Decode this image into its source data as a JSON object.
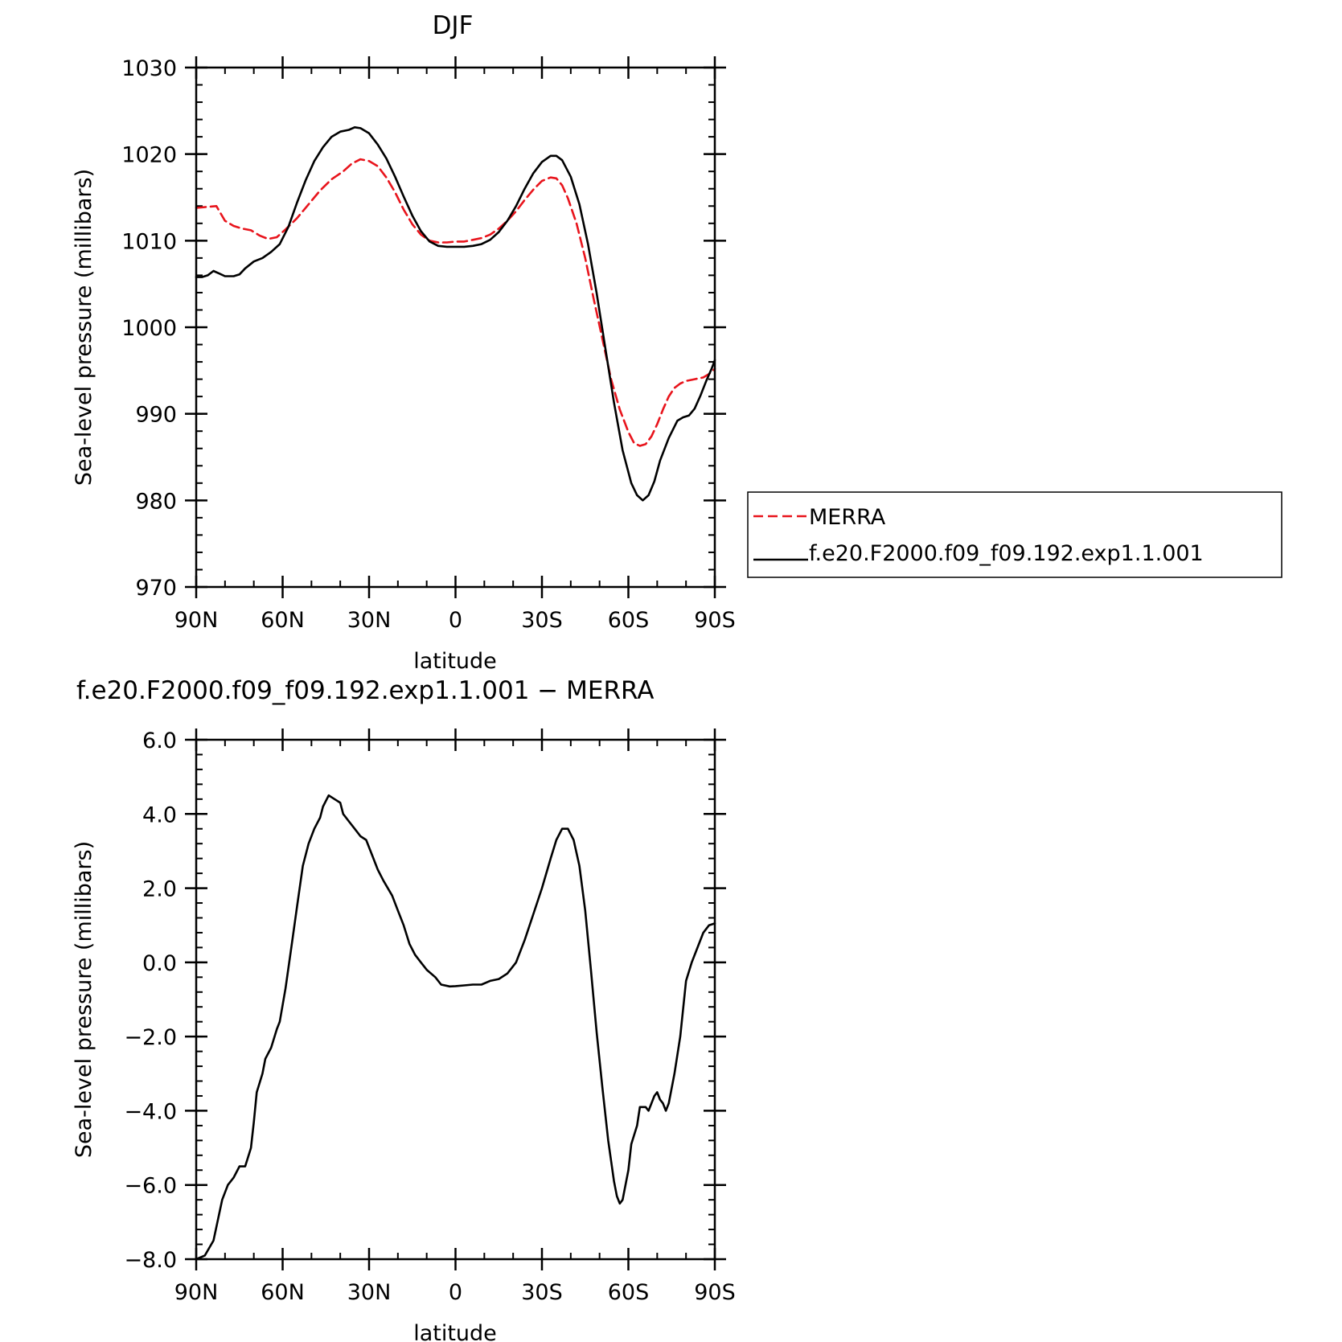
{
  "chart_data": [
    {
      "type": "line",
      "title": "DJF",
      "xlabel": "latitude",
      "ylabel": "Sea-level pressure (millibars)",
      "xlim": [
        90,
        -90
      ],
      "ylim": [
        970,
        1030
      ],
      "xticks": [
        {
          "value": 90,
          "label": "90N"
        },
        {
          "value": 60,
          "label": "60N"
        },
        {
          "value": 30,
          "label": "30N"
        },
        {
          "value": 0,
          "label": "0"
        },
        {
          "value": -30,
          "label": "30S"
        },
        {
          "value": -60,
          "label": "60S"
        },
        {
          "value": -90,
          "label": "90S"
        }
      ],
      "yticks": [
        {
          "value": 970,
          "label": "970"
        },
        {
          "value": 980,
          "label": "980"
        },
        {
          "value": 990,
          "label": "990"
        },
        {
          "value": 1000,
          "label": "1000"
        },
        {
          "value": 1010,
          "label": "1010"
        },
        {
          "value": 1020,
          "label": "1020"
        },
        {
          "value": 1030,
          "label": "1030"
        }
      ],
      "legend": {
        "placement": "right"
      },
      "series": [
        {
          "name": "MERRA",
          "color": "#e8141c",
          "style": "dashed",
          "points": [
            [
              90,
              1013.8
            ],
            [
              86,
              1013.9
            ],
            [
              83,
              1014.0
            ],
            [
              80,
              1012.3
            ],
            [
              77,
              1011.7
            ],
            [
              74,
              1011.4
            ],
            [
              71,
              1011.2
            ],
            [
              68,
              1010.6
            ],
            [
              65,
              1010.2
            ],
            [
              62,
              1010.4
            ],
            [
              59,
              1011.3
            ],
            [
              55,
              1012.6
            ],
            [
              51,
              1014.2
            ],
            [
              47,
              1015.8
            ],
            [
              43,
              1017.1
            ],
            [
              39,
              1018.0
            ],
            [
              36,
              1018.9
            ],
            [
              33,
              1019.4
            ],
            [
              30,
              1019.2
            ],
            [
              27,
              1018.6
            ],
            [
              24,
              1017.3
            ],
            [
              21,
              1015.6
            ],
            [
              18,
              1013.6
            ],
            [
              15,
              1011.9
            ],
            [
              12,
              1010.7
            ],
            [
              9,
              1010.0
            ],
            [
              6,
              1009.8
            ],
            [
              3,
              1009.8
            ],
            [
              0,
              1009.9
            ],
            [
              -3,
              1009.9
            ],
            [
              -6,
              1010.1
            ],
            [
              -9,
              1010.3
            ],
            [
              -12,
              1010.7
            ],
            [
              -15,
              1011.4
            ],
            [
              -18,
              1012.3
            ],
            [
              -21,
              1013.4
            ],
            [
              -24,
              1014.7
            ],
            [
              -27,
              1015.9
            ],
            [
              -30,
              1016.9
            ],
            [
              -33,
              1017.3
            ],
            [
              -35,
              1017.2
            ],
            [
              -37,
              1016.4
            ],
            [
              -39,
              1014.9
            ],
            [
              -42,
              1012.0
            ],
            [
              -45,
              1008.0
            ],
            [
              -48,
              1003.2
            ],
            [
              -51,
              998.6
            ],
            [
              -54,
              994.0
            ],
            [
              -57,
              990.5
            ],
            [
              -60,
              987.9
            ],
            [
              -62,
              986.6
            ],
            [
              -64,
              986.3
            ],
            [
              -66,
              986.5
            ],
            [
              -68,
              987.4
            ],
            [
              -70,
              988.8
            ],
            [
              -72,
              990.5
            ],
            [
              -74,
              992.0
            ],
            [
              -76,
              993.0
            ],
            [
              -78,
              993.5
            ],
            [
              -80,
              993.8
            ],
            [
              -83,
              994.0
            ],
            [
              -86,
              994.2
            ],
            [
              -88,
              994.6
            ],
            [
              -90,
              995.2
            ]
          ]
        },
        {
          "name": "f.e20.F2000.f09_f09.192.exp1.1.001",
          "color": "#000000",
          "style": "solid",
          "points": [
            [
              90,
              1005.8
            ],
            [
              88,
              1005.8
            ],
            [
              86,
              1006.0
            ],
            [
              84,
              1006.5
            ],
            [
              82,
              1006.2
            ],
            [
              80,
              1005.9
            ],
            [
              77,
              1005.9
            ],
            [
              75,
              1006.1
            ],
            [
              73,
              1006.8
            ],
            [
              70,
              1007.6
            ],
            [
              67,
              1008.0
            ],
            [
              64,
              1008.7
            ],
            [
              61,
              1009.6
            ],
            [
              58,
              1011.6
            ],
            [
              55,
              1014.4
            ],
            [
              52,
              1017.0
            ],
            [
              49,
              1019.2
            ],
            [
              46,
              1020.8
            ],
            [
              43,
              1022.0
            ],
            [
              40,
              1022.6
            ],
            [
              37,
              1022.8
            ],
            [
              35,
              1023.1
            ],
            [
              33,
              1023.0
            ],
            [
              30,
              1022.4
            ],
            [
              27,
              1021.1
            ],
            [
              24,
              1019.5
            ],
            [
              21,
              1017.4
            ],
            [
              18,
              1015.1
            ],
            [
              15,
              1012.9
            ],
            [
              12,
              1011.1
            ],
            [
              9,
              1009.9
            ],
            [
              6,
              1009.4
            ],
            [
              3,
              1009.3
            ],
            [
              0,
              1009.3
            ],
            [
              -3,
              1009.3
            ],
            [
              -6,
              1009.4
            ],
            [
              -9,
              1009.6
            ],
            [
              -12,
              1010.1
            ],
            [
              -15,
              1011.0
            ],
            [
              -18,
              1012.3
            ],
            [
              -21,
              1014.0
            ],
            [
              -24,
              1016.0
            ],
            [
              -27,
              1017.8
            ],
            [
              -30,
              1019.1
            ],
            [
              -33,
              1019.8
            ],
            [
              -35,
              1019.8
            ],
            [
              -37,
              1019.3
            ],
            [
              -40,
              1017.4
            ],
            [
              -43,
              1014.2
            ],
            [
              -46,
              1009.6
            ],
            [
              -49,
              1003.9
            ],
            [
              -52,
              997.6
            ],
            [
              -55,
              991.3
            ],
            [
              -58,
              985.8
            ],
            [
              -61,
              982.0
            ],
            [
              -63,
              980.6
            ],
            [
              -65,
              980.0
            ],
            [
              -67,
              980.6
            ],
            [
              -69,
              982.2
            ],
            [
              -71,
              984.6
            ],
            [
              -74,
              987.2
            ],
            [
              -77,
              989.2
            ],
            [
              -79,
              989.6
            ],
            [
              -81,
              989.8
            ],
            [
              -83,
              990.6
            ],
            [
              -85,
              992.1
            ],
            [
              -87,
              993.8
            ],
            [
              -89,
              995.3
            ],
            [
              -90,
              996.2
            ]
          ]
        }
      ]
    },
    {
      "type": "line",
      "title": "f.e20.F2000.f09_f09.192.exp1.1.001 − MERRA",
      "xlabel": "latitude",
      "ylabel": "Sea-level pressure (millibars)",
      "xlim": [
        90,
        -90
      ],
      "ylim": [
        -8,
        6
      ],
      "xticks": [
        {
          "value": 90,
          "label": "90N"
        },
        {
          "value": 60,
          "label": "60N"
        },
        {
          "value": 30,
          "label": "30N"
        },
        {
          "value": 0,
          "label": "0"
        },
        {
          "value": -30,
          "label": "30S"
        },
        {
          "value": -60,
          "label": "60S"
        },
        {
          "value": -90,
          "label": "90S"
        }
      ],
      "yticks": [
        {
          "value": -8,
          "label": "−8.0"
        },
        {
          "value": -6,
          "label": "−6.0"
        },
        {
          "value": -4,
          "label": "−4.0"
        },
        {
          "value": -2,
          "label": "−2.0"
        },
        {
          "value": 0,
          "label": "0.0"
        },
        {
          "value": 2,
          "label": "2.0"
        },
        {
          "value": 4,
          "label": "4.0"
        },
        {
          "value": 6,
          "label": "6.0"
        }
      ],
      "series": [
        {
          "color": "#000000",
          "style": "solid",
          "points": [
            [
              90,
              -8.0
            ],
            [
              87,
              -7.9
            ],
            [
              84,
              -7.5
            ],
            [
              81,
              -6.4
            ],
            [
              79,
              -6.0
            ],
            [
              77,
              -5.8
            ],
            [
              75,
              -5.5
            ],
            [
              73,
              -5.5
            ],
            [
              71,
              -5.0
            ],
            [
              70,
              -4.3
            ],
            [
              69,
              -3.5
            ],
            [
              67,
              -3.0
            ],
            [
              66,
              -2.6
            ],
            [
              64,
              -2.3
            ],
            [
              62,
              -1.8
            ],
            [
              61,
              -1.6
            ],
            [
              59,
              -0.7
            ],
            [
              57,
              0.4
            ],
            [
              55,
              1.5
            ],
            [
              53,
              2.6
            ],
            [
              51,
              3.2
            ],
            [
              49,
              3.6
            ],
            [
              47,
              3.9
            ],
            [
              46,
              4.2
            ],
            [
              44,
              4.5
            ],
            [
              42,
              4.4
            ],
            [
              40,
              4.3
            ],
            [
              39,
              4.0
            ],
            [
              37,
              3.8
            ],
            [
              35,
              3.6
            ],
            [
              33,
              3.4
            ],
            [
              31,
              3.3
            ],
            [
              29,
              2.9
            ],
            [
              27,
              2.5
            ],
            [
              25,
              2.2
            ],
            [
              22,
              1.8
            ],
            [
              20,
              1.4
            ],
            [
              18,
              1.0
            ],
            [
              16,
              0.5
            ],
            [
              14,
              0.2
            ],
            [
              12,
              0.0
            ],
            [
              10,
              -0.2
            ],
            [
              7,
              -0.4
            ],
            [
              5,
              -0.6
            ],
            [
              2,
              -0.65
            ],
            [
              0,
              -0.64
            ],
            [
              -3,
              -0.62
            ],
            [
              -6,
              -0.6
            ],
            [
              -9,
              -0.6
            ],
            [
              -12,
              -0.5
            ],
            [
              -15,
              -0.45
            ],
            [
              -18,
              -0.3
            ],
            [
              -21,
              0.0
            ],
            [
              -24,
              0.6
            ],
            [
              -27,
              1.3
            ],
            [
              -30,
              2.0
            ],
            [
              -33,
              2.8
            ],
            [
              -35,
              3.3
            ],
            [
              -37,
              3.6
            ],
            [
              -39,
              3.6
            ],
            [
              -41,
              3.3
            ],
            [
              -43,
              2.6
            ],
            [
              -45,
              1.4
            ],
            [
              -47,
              -0.2
            ],
            [
              -49,
              -1.9
            ],
            [
              -51,
              -3.4
            ],
            [
              -53,
              -4.8
            ],
            [
              -55,
              -5.9
            ],
            [
              -56,
              -6.3
            ],
            [
              -57,
              -6.5
            ],
            [
              -58,
              -6.4
            ],
            [
              -60,
              -5.6
            ],
            [
              -61,
              -4.9
            ],
            [
              -63,
              -4.4
            ],
            [
              -64,
              -3.9
            ],
            [
              -66,
              -3.9
            ],
            [
              -67,
              -4.0
            ],
            [
              -69,
              -3.6
            ],
            [
              -70,
              -3.5
            ],
            [
              -71,
              -3.7
            ],
            [
              -72,
              -3.8
            ],
            [
              -73,
              -4.0
            ],
            [
              -74,
              -3.8
            ],
            [
              -76,
              -3.0
            ],
            [
              -78,
              -2.0
            ],
            [
              -80,
              -0.5
            ],
            [
              -82,
              0.0
            ],
            [
              -84,
              0.4
            ],
            [
              -86,
              0.8
            ],
            [
              -88,
              1.0
            ],
            [
              -90,
              1.05
            ]
          ]
        }
      ]
    }
  ]
}
